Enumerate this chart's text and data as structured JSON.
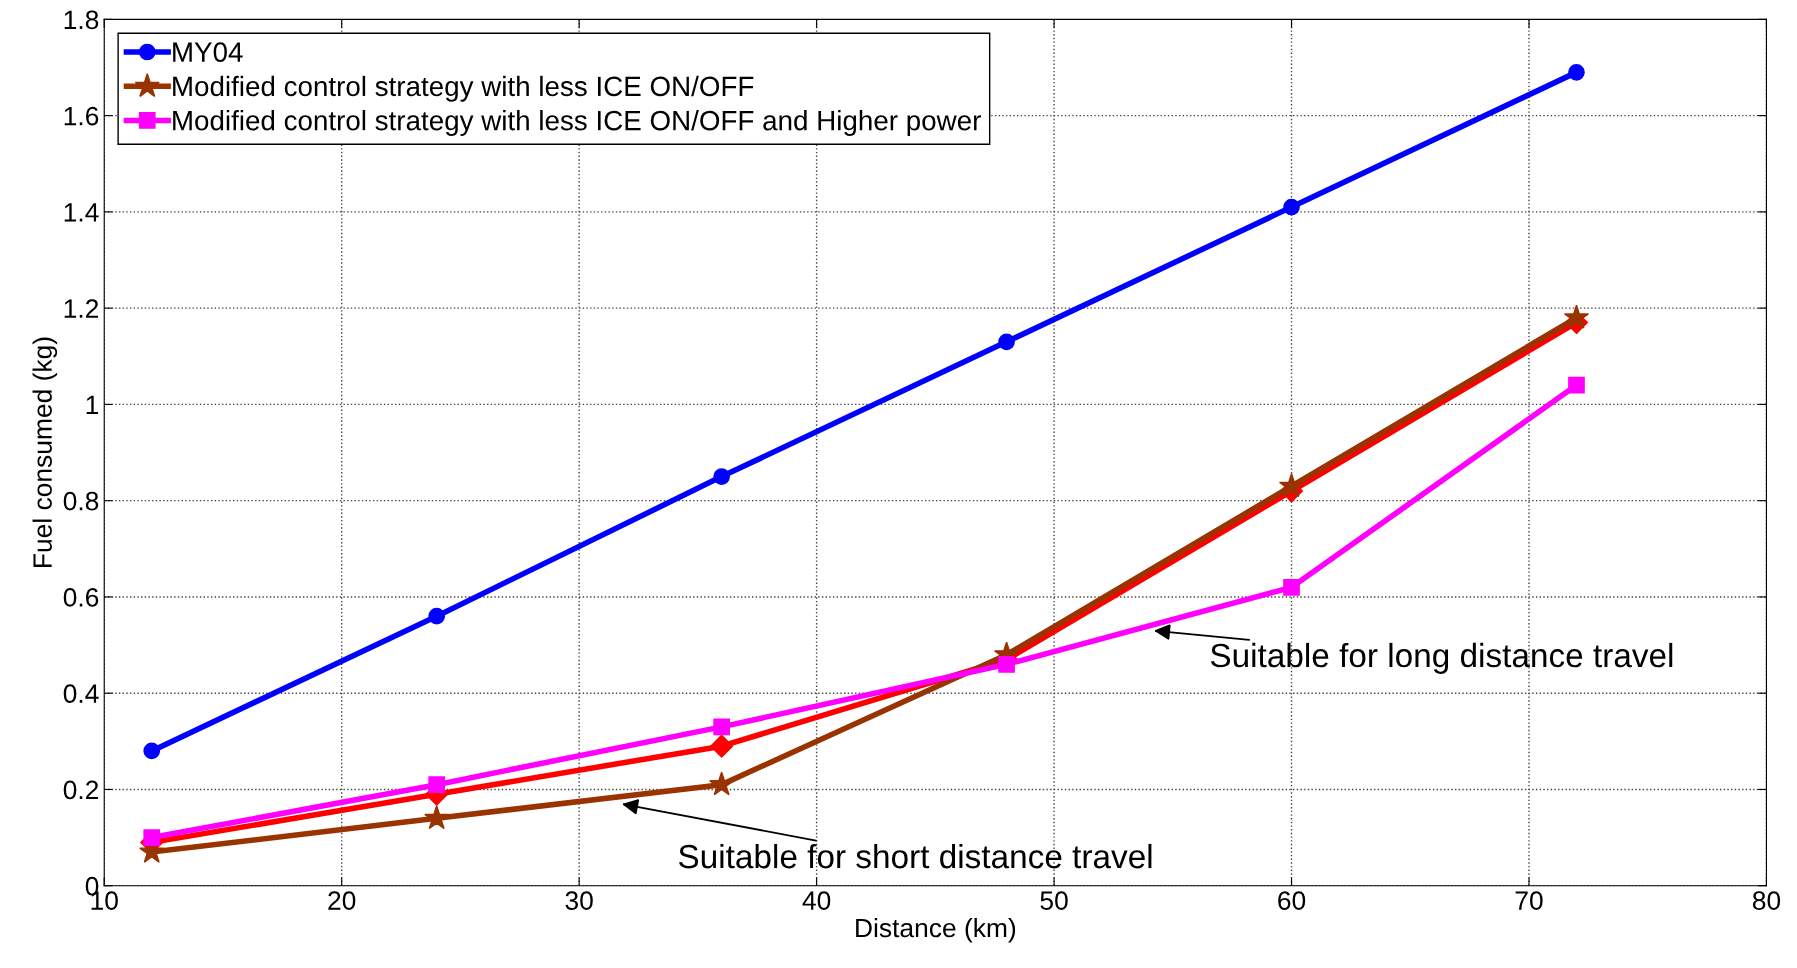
{
  "chart_data": {
    "type": "line",
    "xlabel": "Distance (km)",
    "ylabel": "Fuel consumed (kg)",
    "x": [
      12,
      24,
      36,
      48,
      60,
      72
    ],
    "series": [
      {
        "name": "MY04",
        "color": "#0000ff",
        "marker": "circle",
        "values": [
          0.28,
          0.56,
          0.85,
          1.13,
          1.41,
          1.69
        ]
      },
      {
        "color": "#ff0000",
        "marker": "diamond",
        "values": [
          0.09,
          0.19,
          0.29,
          0.47,
          0.82,
          1.17
        ]
      },
      {
        "name": "Modified control strategy with less ICE ON/OFF",
        "color": "#993300",
        "marker": "star",
        "values": [
          0.07,
          0.14,
          0.21,
          0.48,
          0.83,
          1.18
        ]
      },
      {
        "name": "Modified control strategy with less ICE ON/OFF and Higher power",
        "color": "#ff00ff",
        "marker": "square",
        "values": [
          0.1,
          0.21,
          0.33,
          0.46,
          0.62,
          1.04
        ]
      }
    ],
    "annotations": [
      {
        "text": "Suitable for short distance travel",
        "x": 31.8,
        "y": 0.17
      },
      {
        "text": "Suitable for long distance travel",
        "x": 54.2,
        "y": 0.53
      }
    ],
    "xlim": [
      10,
      80
    ],
    "xticks": [
      10,
      20,
      30,
      40,
      50,
      60,
      70,
      80
    ],
    "ylim": [
      0,
      1.8
    ],
    "yticks": [
      0,
      0.2,
      0.4,
      0.6,
      0.8,
      1,
      1.2,
      1.4,
      1.6,
      1.8
    ],
    "grid": true,
    "legend": "top left",
    "line_style": "solid"
  }
}
